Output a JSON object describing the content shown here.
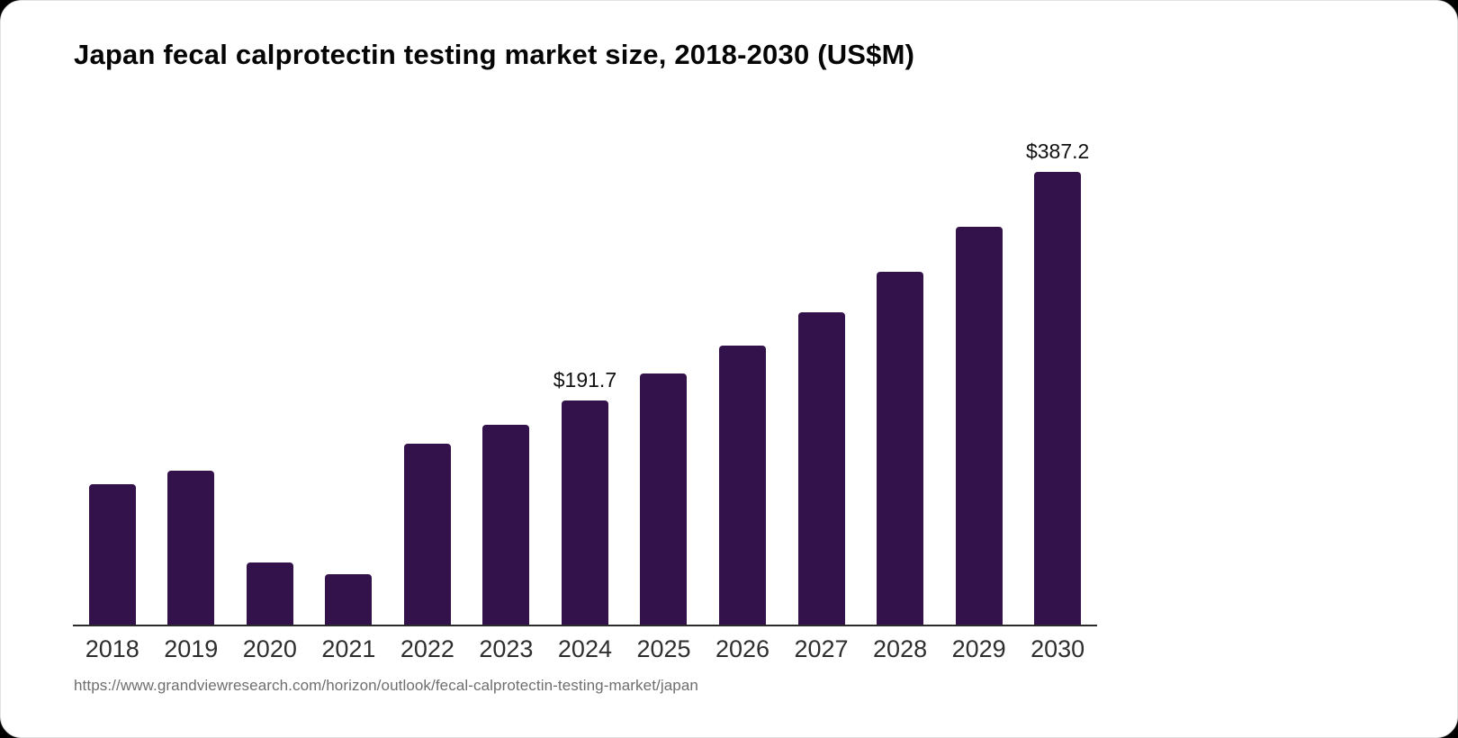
{
  "page": {
    "title": "Japan fecal calprotectin testing market size, 2018-2030 (US$M)",
    "source_url": "https://www.grandviewresearch.com/horizon/outlook/fecal-calprotectin-testing-market/japan"
  },
  "colors": {
    "bar": "#33114a",
    "axis_line": "#2b2b2b",
    "title_text": "#050505",
    "tick_label": "#2e2e2e",
    "value_label": "#111111",
    "source_text": "#6e6e6e",
    "card_background": "#ffffff",
    "page_background": "#000000"
  },
  "chart_data": {
    "type": "bar",
    "title": "Japan fecal calprotectin testing market size, 2018-2030 (US$M)",
    "unit": "US$M",
    "categories": [
      "2018",
      "2019",
      "2020",
      "2021",
      "2022",
      "2023",
      "2024",
      "2025",
      "2026",
      "2027",
      "2028",
      "2029",
      "2030"
    ],
    "values": [
      120.1,
      131.6,
      53.1,
      43.1,
      154.7,
      171.0,
      191.7,
      214.7,
      238.6,
      267.1,
      301.7,
      340.2,
      387.2
    ],
    "data_labels": {
      "2024": "$191.7",
      "2030": "$387.2"
    },
    "xlabel": "",
    "ylabel": "",
    "ylim": [
      0,
      420
    ],
    "grid": false,
    "legend": false,
    "bar_color": "#33114a"
  }
}
